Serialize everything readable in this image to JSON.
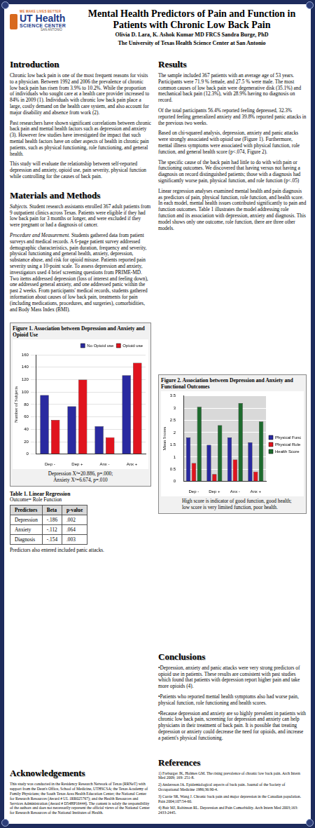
{
  "header": {
    "logo": [
      "WE MAKE LIVES BETTER",
      "UT Health",
      "SCIENCE CENTER",
      "SAN ANTONIO"
    ],
    "title": "Mental Health Predictors of Pain and Function in Patients with Chronic Low Back Pain",
    "authors": "Olivia D. Lara,  K. Ashok Kumar MD FRCS Sandra Burge, PhD",
    "affiliation": "The University of Texas Health Science Center at San Antonio"
  },
  "introduction": {
    "heading": "Introduction",
    "paragraphs": [
      "Chronic low back pain is one of the most frequent reasons for visits to a physician. Between 1992 and 2006 the prevalence of chronic low back pain has risen from 3.9% to 10.2%. While the proportion of individuals who sought care at a health care provider increased to 84% in 2009 (1). Individuals with chronic low back pain place a large, costly demand on the health care system, and also account for major disability and absence from work (2).",
      "Past researchers have shown significant correlations between chronic back pain and mental health factors such as depression and anxiety (3). However few studies have investigated the impact that such mental health factors have on other aspects of health in chronic pain patients, such as physical functioning, role functioning, and general health.",
      "This study will evaluate the relationship between self-reported depression and anxiety, opioid use, pain severity, physical function while controlling for the causes of back pain."
    ]
  },
  "methods": {
    "heading": "Materials and Methods",
    "paragraphs": [
      {
        "label": "Subjects.",
        "text": "Student research assistants enrolled 367 adult patients from 9 outpatient clinics across Texas. Patients were eligible if they had low back pain for 3 months or longer, and were excluded if they were pregnant or had a diagnosis of cancer."
      },
      {
        "label": "Procedure and Measurement.",
        "text": "Students gathered data from patient surveys and medical records. A 6-page patient survey addressed demographic characteristics, pain duration, frequency and severity, physical functioning and general health, anxiety, depression, substance abuse, and risk for opioid misuse. Patients reported pain severity using a 10-point scale. To assess depression and anxiety, investigators used 4 brief screening questions from PRIME-MD. Two items addressed depression (loss of interest and feeling down), one addressed general anxiety, and one addressed panic within the past 2 weeks. From participants' medical records, students gathered information about causes of low back pain, treatments for pain (including medications, procedures, and surgeries), comorbidities, and Body Mass Index (BMI)."
      }
    ]
  },
  "results": {
    "heading": "Results",
    "paragraphs": [
      "The sample included 367 patients with an average age of 53 years. Participants were 71.9 % female, and 27.5 % were male. The most common causes of low back pain were degenerative disk (35.1%) and mechanical back pain (12.3%), with 28.9% having no diagnosis on record.",
      "Of the total participants 56.4% reported feeling depressed, 32.3% reported feeling generalized anxiety and 39.8% reported panic attacks in the previous two weeks.",
      "Based on chi-squared analysis, depression, anxiety and panic attacks were strongly associated with opioid use (Figure 1).  Furthermore, mental illness symptoms were associated with physical function, role function, and general health score (p<.074, Figure 2).",
      "The specific cause of the back pain had little to do with with pain or functioning outcomes.  We discovered that having versus not having a diagnosis on record distinguished patients; those with a diagnosis had significantly worse pain, physical function, and role function (p<.05)",
      "Linear regression analyses examined mental health and pain diagnosis as predictors of pain, physical function, role function, and health score.  In each model, mental health issues contributed significantly to pain and function outcomes. Table 1 illustrates the model addressing role function and its association with depression, anxiety and diagnosis.  This model shows only one outcome, role function, there are three other models."
    ]
  },
  "conclusions": {
    "heading": "Conclusions",
    "bullets": [
      "•Depression, anxiety and panic attacks were very strong predictors of opioid use in patients.  These results are consistent with past studies which found that patients with depression report higher pain and take more opioids (4).",
      "•Patients who reported mental health symptoms also had worse pain, physical function, role functioning and health scores.",
      "•Because depression and anxiety are so highly prevalent in patients with chronic low back pain, screening for depression and anxiety can help physicians in their treatment of back pain.  It is possible that treating depression or anxiety could decrease the need for opioids, and increase a patient's physical functioning."
    ]
  },
  "acknowledgements": {
    "heading": "Acknowledgements",
    "text": "This study was conducted in the Residency Research Network of Texas (RRNeT) with support from the Dean's Office, School of Medicine, UTHSCSA;  the Texas Academy of Family Physicians; the South Texas Area Health Education Center; the National Center for Research Resources (Award # UL 1RR025767); and the Health Resources and Services Administration (Award # D54HP16444).  The content is solely the responsibility of the authors and does not necessarily represent the official views of the National Center for Research Resources of the National Institutes of Health."
  },
  "references": {
    "heading": "References",
    "items": [
      "1) Freburger JK, Holmes GM. The rising prevalence of chronic low back pain. Arch Intern Med 2009; 169: 251-8.",
      "2) Andersson JA. Epidemiological aspects of back pain. Journal of the Society of Occupational Medicine 1986;36:90-4.",
      "3) Currie SR, Wang J. Chronic back pain and major depression in the Canadian population. Pain 2004;107:54-60.",
      "4) Bair MJ, Robinson RL.  Depression and Pain Comorbidity. Arch Intern Med 2003;163: 2433-2445."
    ]
  },
  "table": {
    "title": "Table 1. Linear Regression",
    "subtitle": "Outcome= Role Function",
    "columns": [
      "Predictors",
      "Beta",
      "p-value"
    ],
    "rows": [
      [
        "Depression",
        "-.186",
        ".002"
      ],
      [
        "Anxiety",
        "-.112",
        ".064"
      ],
      [
        "Diagnosis",
        "-.154",
        ".003"
      ]
    ],
    "note": "Predictors also entered included panic attacks."
  },
  "chart_data": [
    {
      "type": "bar",
      "title": "Figure 1. Association between Depression and Anxiety and Opioid Use",
      "categories": [
        "Dep -",
        "Dep +",
        "Anx -",
        "Anx +"
      ],
      "series": [
        {
          "name": "No Opioid use",
          "color": "#2a2aa0",
          "values": [
            95,
            77,
            45,
            127
          ]
        },
        {
          "name": "Opioid use",
          "color": "#e0141e",
          "values": [
            55,
            120,
            27,
            147
          ]
        }
      ],
      "y_label": "Number of Subjects",
      "ylim": [
        0,
        160
      ],
      "yticks": [
        0,
        20,
        40,
        60,
        80,
        100,
        120,
        140,
        160
      ],
      "grid": true,
      "legend": "upper right",
      "annotations": [
        "Depression X²=20.886, p=.000;",
        "Anxiety X²=6.674, p=.010"
      ]
    },
    {
      "type": "bar",
      "title": "Figure 2. Association between Depression and Anxiety and Functional Outcomes",
      "categories": [
        "Dep -",
        "Dep +",
        "Anx -",
        "Anx +"
      ],
      "series": [
        {
          "name": "Physical Function",
          "color": "#2a2aa0",
          "values": [
            1.8,
            1.5,
            1.8,
            1.6
          ]
        },
        {
          "name": "Physical Role",
          "color": "#e0141e",
          "values": [
            0.75,
            0.3,
            0.9,
            0.4
          ]
        },
        {
          "name": "Health Score",
          "color": "#1e6b2e",
          "values": [
            3.05,
            2.3,
            3.2,
            2.45
          ]
        }
      ],
      "y_label": "Mean Scores",
      "ylim": [
        0,
        3.5
      ],
      "yticks": [
        0,
        0.5,
        1,
        1.5,
        2,
        2.5,
        3,
        3.5
      ],
      "grid": true,
      "legend": "right",
      "annotations": [
        "High score is indicator of good function, good health; low score is very limited function, poor health."
      ]
    }
  ]
}
